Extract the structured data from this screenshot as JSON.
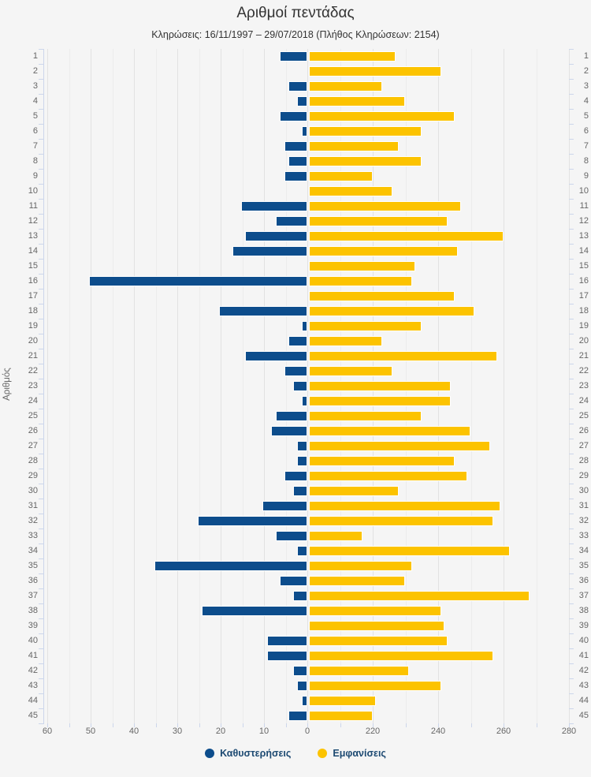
{
  "header": {
    "title": "Αριθμοί πεντάδας",
    "subtitle": "Κληρώσεις: 16/11/1997 – 29/07/2018 (Πλήθος Κληρώσεων: 2154)"
  },
  "chart_data": {
    "type": "bar",
    "orientation": "horizontal-diverging",
    "title": "Αριθμοί πεντάδας",
    "subtitle": "Κληρώσεις: 16/11/1997 – 29/07/2018 (Πλήθος Κληρώσεων: 2154)",
    "y_axis_title": "Αριθμός",
    "categories": [
      1,
      2,
      3,
      4,
      5,
      6,
      7,
      8,
      9,
      10,
      11,
      12,
      13,
      14,
      15,
      16,
      17,
      18,
      19,
      20,
      21,
      22,
      23,
      24,
      25,
      26,
      27,
      28,
      29,
      30,
      31,
      32,
      33,
      34,
      35,
      36,
      37,
      38,
      39,
      40,
      41,
      42,
      43,
      44,
      45
    ],
    "series": [
      {
        "name": "Καθυστερήσεις",
        "color": "#0d4d8c",
        "axis": "left",
        "values": [
          6,
          0,
          4,
          2,
          6,
          1,
          5,
          4,
          5,
          0,
          15,
          7,
          14,
          17,
          0,
          50,
          0,
          20,
          1,
          4,
          14,
          5,
          3,
          1,
          7,
          8,
          2,
          2,
          5,
          3,
          10,
          25,
          7,
          2,
          35,
          6,
          3,
          24,
          0,
          9,
          9,
          3,
          2,
          1,
          4
        ]
      },
      {
        "name": "Εμφανίσεις",
        "color": "#fcc300",
        "axis": "right",
        "values": [
          226,
          240,
          222,
          229,
          244,
          234,
          227,
          234,
          219,
          225,
          246,
          242,
          259,
          245,
          232,
          231,
          244,
          250,
          234,
          222,
          257,
          225,
          243,
          243,
          234,
          249,
          255,
          244,
          248,
          227,
          258,
          256,
          216,
          261,
          231,
          229,
          267,
          240,
          241,
          242,
          256,
          230,
          240,
          220,
          219
        ]
      }
    ],
    "left_axis": {
      "ticks": [
        60,
        50,
        40,
        30,
        20,
        10,
        0
      ],
      "min": 0,
      "max": 60,
      "reversed": true
    },
    "right_axis": {
      "ticks": [
        220,
        240,
        260,
        280
      ],
      "min": 200,
      "max": 280
    },
    "grid": true,
    "legend_position": "bottom"
  },
  "legend": {
    "items": [
      {
        "label": "Καθυστερήσεις",
        "color": "#0d4d8c"
      },
      {
        "label": "Εμφανίσεις",
        "color": "#fcc300"
      }
    ]
  },
  "colors": {
    "background": "#f5f5f5",
    "delay_bar": "#0d4d8c",
    "appearance_bar": "#fcc300",
    "axis_line": "#ccd6eb",
    "gridline": "#e2e2e2",
    "axis_label": "#666666",
    "legend_text": "#1d4a72",
    "title_text": "#333333"
  }
}
